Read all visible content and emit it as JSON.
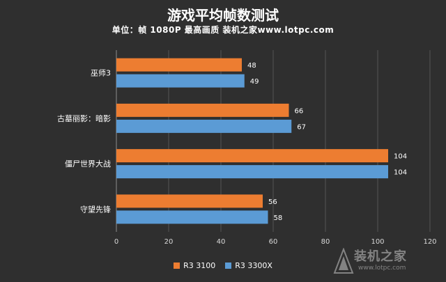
{
  "chart_data": {
    "type": "bar",
    "orientation": "horizontal",
    "title": "游戏平均帧数测试",
    "subtitle": "单位：帧  1080P 最高画质 装机之家www.lotpc.com",
    "categories": [
      "巫师3",
      "古墓丽影：暗影",
      "僵尸世界大战",
      "守望先锋"
    ],
    "series": [
      {
        "name": "R3 3100",
        "color": "#ed7d31",
        "values": [
          48,
          66,
          104,
          56
        ]
      },
      {
        "name": "R3 3300X",
        "color": "#5b9bd5",
        "values": [
          49,
          67,
          104,
          58
        ]
      }
    ],
    "xlim": [
      0,
      120
    ],
    "xticks": [
      0,
      20,
      40,
      60,
      80,
      100,
      120
    ],
    "grid": "vertical",
    "legend": "bottom-center"
  },
  "watermark": {
    "text": "装机之家",
    "url": "www.lotpc.com"
  }
}
